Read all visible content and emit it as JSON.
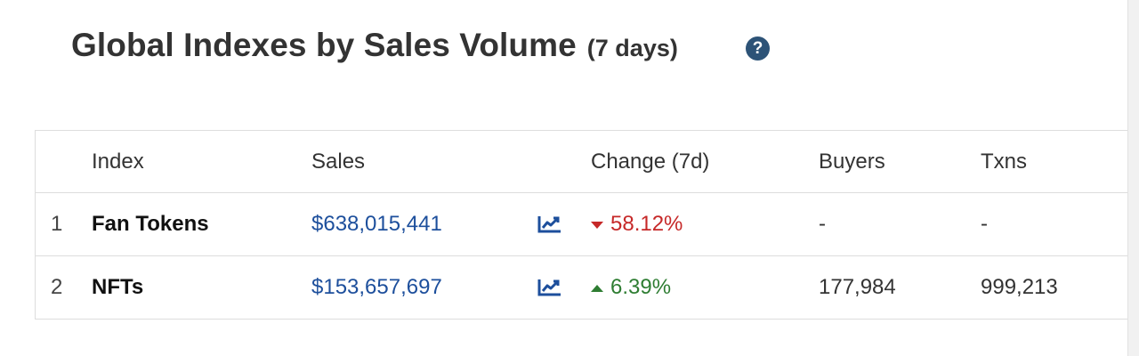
{
  "header": {
    "title": "Global Indexes by Sales Volume",
    "subtitle": "(7 days)",
    "help_icon": "question-circle-icon",
    "help_glyph": "?"
  },
  "table": {
    "columns": {
      "index": "Index",
      "sales": "Sales",
      "change": "Change (7d)",
      "buyers": "Buyers",
      "txns": "Txns"
    },
    "rows": [
      {
        "rank": "1",
        "index": "Fan Tokens",
        "sales": "$638,015,441",
        "chart_icon": "line-chart-icon",
        "change": "58.12%",
        "direction": "down",
        "buyers": "-",
        "txns": "-"
      },
      {
        "rank": "2",
        "index": "NFTs",
        "sales": "$153,657,697",
        "chart_icon": "line-chart-icon",
        "change": "6.39%",
        "direction": "up",
        "buyers": "177,984",
        "txns": "999,213"
      }
    ]
  },
  "colors": {
    "link": "#1d4f9c",
    "negative": "#c62828",
    "positive": "#2e7d32",
    "help_icon_bg": "#2d5377"
  }
}
